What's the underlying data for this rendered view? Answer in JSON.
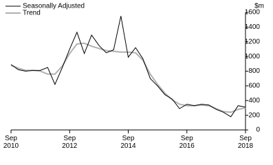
{
  "chart_data": {
    "type": "line",
    "y_label": "$m",
    "categories": [
      "Sep 2010",
      null,
      null,
      null,
      null,
      null,
      null,
      null,
      "Sep 2012",
      null,
      null,
      null,
      null,
      null,
      null,
      null,
      "Sep 2014",
      null,
      null,
      null,
      null,
      null,
      null,
      null,
      "Sep 2016",
      null,
      null,
      null,
      null,
      null,
      null,
      null,
      "Sep 2018"
    ],
    "series": [
      {
        "name": "Seasonally Adjusted",
        "color": "#000000",
        "values": [
          890,
          820,
          800,
          810,
          810,
          850,
          620,
          850,
          1100,
          1330,
          1040,
          1290,
          1150,
          1050,
          1090,
          1550,
          990,
          1120,
          970,
          700,
          600,
          480,
          420,
          290,
          350,
          330,
          350,
          340,
          280,
          240,
          180,
          330,
          310
        ]
      },
      {
        "name": "Trend",
        "color": "#b0b0b0",
        "values": [
          880,
          840,
          810,
          810,
          800,
          760,
          760,
          870,
          1040,
          1170,
          1180,
          1140,
          1110,
          1080,
          1070,
          1060,
          1060,
          1050,
          950,
          760,
          620,
          500,
          410,
          350,
          330,
          330,
          340,
          330,
          290,
          250,
          240,
          280,
          300
        ]
      }
    ],
    "ylim": [
      0,
      1600
    ],
    "yticks": [
      0,
      200,
      400,
      600,
      800,
      1000,
      1200,
      1400,
      1600
    ],
    "legend": "top-left"
  }
}
